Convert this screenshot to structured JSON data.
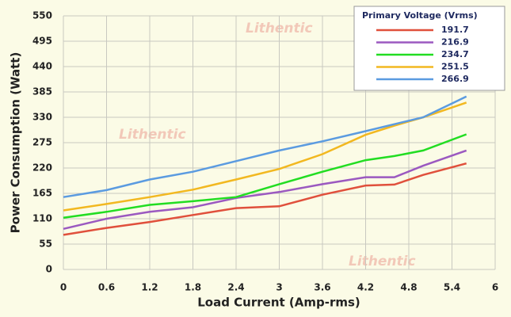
{
  "chart_data": {
    "type": "line",
    "xlabel": "Load Current (Amp-rms)",
    "ylabel": "Power Consumption (Watt)",
    "watermark": "Lithentic",
    "legend_title": "Primary Voltage (Vrms)",
    "legend_position": "top-right",
    "grid": true,
    "x": [
      0,
      0.6,
      1.2,
      1.8,
      2.4,
      3.0,
      3.6,
      4.2,
      4.6,
      5.0,
      5.6
    ],
    "xlim": [
      0,
      6
    ],
    "xticks": [
      0,
      0.6,
      1.2,
      1.8,
      2.4,
      3,
      3.6,
      4.2,
      4.8,
      5.4,
      6
    ],
    "ylim": [
      0,
      550
    ],
    "yticks": [
      0,
      55,
      110,
      165,
      220,
      275,
      330,
      385,
      440,
      495,
      550
    ],
    "series": [
      {
        "name": "191.7",
        "color": "#e0503c",
        "values": [
          75,
          90,
          103,
          118,
          133,
          137,
          162,
          182,
          184,
          205,
          230
        ]
      },
      {
        "name": "216.9",
        "color": "#9b59c0",
        "values": [
          88,
          110,
          125,
          135,
          155,
          168,
          185,
          200,
          200,
          225,
          258
        ]
      },
      {
        "name": "234.7",
        "color": "#22dd22",
        "values": [
          112,
          125,
          140,
          148,
          157,
          185,
          212,
          237,
          246,
          258,
          293
        ]
      },
      {
        "name": "251.5",
        "color": "#f2b820",
        "values": [
          128,
          142,
          157,
          173,
          195,
          218,
          250,
          292,
          312,
          330,
          362
        ]
      },
      {
        "name": "266.9",
        "color": "#5b9be0",
        "values": [
          157,
          172,
          195,
          212,
          235,
          258,
          278,
          300,
          315,
          330,
          375
        ]
      }
    ]
  }
}
